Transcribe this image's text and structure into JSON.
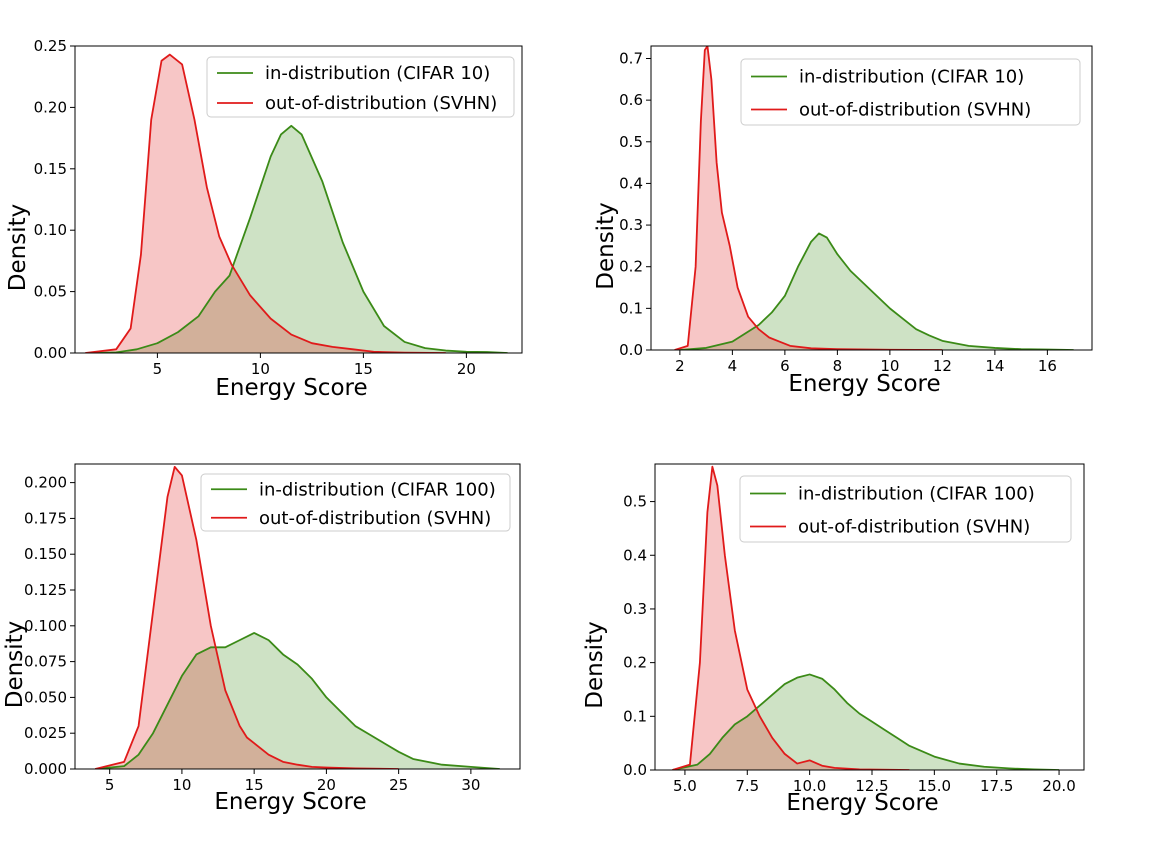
{
  "colors": {
    "in_line": "#3b8a17",
    "in_fill": "#3b8a17",
    "ood_line": "#e01a1a",
    "ood_fill": "#e01a1a"
  },
  "chart_data": [
    {
      "type": "area",
      "xlabel": "Energy Score",
      "ylabel": "Density",
      "xlim": [
        1.0,
        22.7
      ],
      "ylim": [
        0,
        0.25
      ],
      "xticks": [
        "5",
        "10",
        "15",
        "20"
      ],
      "xtick_values": [
        5,
        10,
        15,
        20
      ],
      "yticks": [
        "0.00",
        "0.05",
        "0.10",
        "0.15",
        "0.20",
        "0.25"
      ],
      "ytick_values": [
        0,
        0.05,
        0.1,
        0.15,
        0.2,
        0.25
      ],
      "legend": "top-right",
      "series": [
        {
          "name": "in-distribution (CIFAR 10)",
          "color": "#3b8a17",
          "x": [
            2.0,
            3.0,
            4.0,
            5.0,
            6.0,
            7.0,
            7.8,
            8.5,
            9.5,
            10.5,
            11.0,
            11.5,
            12.0,
            13.0,
            14.0,
            15.0,
            16.0,
            17.0,
            18.0,
            19.0,
            20.0,
            21.0,
            22.0
          ],
          "y": [
            0.0,
            0.0005,
            0.003,
            0.008,
            0.017,
            0.03,
            0.05,
            0.063,
            0.11,
            0.16,
            0.178,
            0.185,
            0.178,
            0.14,
            0.09,
            0.05,
            0.022,
            0.009,
            0.004,
            0.002,
            0.001,
            0.0008,
            0.0
          ]
        },
        {
          "name": "out-of-distribution (SVHN)",
          "color": "#e01a1a",
          "x": [
            1.5,
            3.0,
            3.7,
            4.2,
            4.7,
            5.2,
            5.6,
            6.2,
            6.8,
            7.4,
            8.0,
            8.6,
            9.5,
            10.5,
            11.5,
            12.5,
            13.5,
            14.5,
            15.5,
            17.0,
            19.0
          ],
          "y": [
            0.0,
            0.003,
            0.02,
            0.08,
            0.19,
            0.238,
            0.243,
            0.235,
            0.19,
            0.135,
            0.095,
            0.072,
            0.047,
            0.028,
            0.015,
            0.008,
            0.005,
            0.003,
            0.001,
            0.0003,
            0.0
          ]
        }
      ]
    },
    {
      "type": "area",
      "xlabel": "Energy Score",
      "ylabel": "Density",
      "xlim": [
        0.9,
        17.7
      ],
      "ylim": [
        0,
        0.73
      ],
      "xticks": [
        "2",
        "4",
        "6",
        "8",
        "10",
        "12",
        "14",
        "16"
      ],
      "xtick_values": [
        2,
        4,
        6,
        8,
        10,
        12,
        14,
        16
      ],
      "yticks": [
        "0.0",
        "0.1",
        "0.2",
        "0.3",
        "0.4",
        "0.5",
        "0.6",
        "0.7"
      ],
      "ytick_values": [
        0,
        0.1,
        0.2,
        0.3,
        0.4,
        0.5,
        0.6,
        0.7
      ],
      "legend": "top-right",
      "series": [
        {
          "name": "in-distribution (CIFAR 10)",
          "color": "#3b8a17",
          "x": [
            2.0,
            3.0,
            4.0,
            5.0,
            5.5,
            6.0,
            6.5,
            7.0,
            7.3,
            7.6,
            8.0,
            8.5,
            9.0,
            9.5,
            10.0,
            10.5,
            11.0,
            11.5,
            12.0,
            13.0,
            14.0,
            15.0,
            16.0,
            17.0
          ],
          "y": [
            0.0,
            0.005,
            0.02,
            0.06,
            0.09,
            0.13,
            0.2,
            0.26,
            0.28,
            0.27,
            0.23,
            0.19,
            0.16,
            0.13,
            0.1,
            0.075,
            0.05,
            0.035,
            0.022,
            0.01,
            0.005,
            0.002,
            0.001,
            0.0
          ]
        },
        {
          "name": "out-of-distribution (SVHN)",
          "color": "#e01a1a",
          "x": [
            1.8,
            2.3,
            2.6,
            2.8,
            2.95,
            3.05,
            3.2,
            3.4,
            3.6,
            3.9,
            4.2,
            4.6,
            5.0,
            5.4,
            5.8,
            6.2,
            7.0,
            8.0,
            10.0,
            12.0
          ],
          "y": [
            0.0,
            0.01,
            0.2,
            0.55,
            0.72,
            0.73,
            0.65,
            0.45,
            0.33,
            0.25,
            0.15,
            0.08,
            0.05,
            0.03,
            0.02,
            0.01,
            0.004,
            0.002,
            0.0005,
            0.0
          ]
        }
      ]
    },
    {
      "type": "area",
      "xlabel": "Energy Score",
      "ylabel": "Density",
      "xlim": [
        2.6,
        33.4
      ],
      "ylim": [
        0,
        0.213
      ],
      "xticks": [
        "5",
        "10",
        "15",
        "20",
        "25",
        "30"
      ],
      "xtick_values": [
        5,
        10,
        15,
        20,
        25,
        30
      ],
      "yticks": [
        "0.000",
        "0.025",
        "0.050",
        "0.075",
        "0.100",
        "0.125",
        "0.150",
        "0.175",
        "0.200"
      ],
      "ytick_values": [
        0,
        0.025,
        0.05,
        0.075,
        0.1,
        0.125,
        0.15,
        0.175,
        0.2
      ],
      "legend": "top-right",
      "series": [
        {
          "name": "in-distribution (CIFAR 100)",
          "color": "#3b8a17",
          "x": [
            4.0,
            6.0,
            7.0,
            8.0,
            9.0,
            10.0,
            11.0,
            12.0,
            13.0,
            14.0,
            15.0,
            16.0,
            17.0,
            18.0,
            19.0,
            20.0,
            21.0,
            22.0,
            23.0,
            24.0,
            25.0,
            26.0,
            28.0,
            30.0,
            32.0
          ],
          "y": [
            0.0,
            0.002,
            0.01,
            0.025,
            0.045,
            0.065,
            0.08,
            0.085,
            0.085,
            0.09,
            0.095,
            0.09,
            0.08,
            0.073,
            0.063,
            0.05,
            0.04,
            0.03,
            0.024,
            0.018,
            0.012,
            0.007,
            0.003,
            0.0015,
            0.0
          ]
        },
        {
          "name": "out-of-distribution (SVHN)",
          "color": "#e01a1a",
          "x": [
            4.0,
            6.0,
            7.0,
            8.0,
            9.0,
            9.5,
            10.0,
            11.0,
            12.0,
            13.0,
            14.0,
            14.5,
            15.0,
            16.0,
            17.0,
            18.0,
            19.0,
            20.0,
            22.0,
            25.0
          ],
          "y": [
            0.0,
            0.005,
            0.03,
            0.11,
            0.19,
            0.211,
            0.205,
            0.16,
            0.1,
            0.055,
            0.03,
            0.022,
            0.018,
            0.01,
            0.005,
            0.003,
            0.0015,
            0.001,
            0.0004,
            0.0
          ]
        }
      ]
    },
    {
      "type": "area",
      "xlabel": "Energy Score",
      "ylabel": "Density",
      "xlim": [
        3.8,
        21.0
      ],
      "ylim": [
        0,
        0.57
      ],
      "xticks": [
        "5.0",
        "7.5",
        "10.0",
        "12.5",
        "15.0",
        "17.5",
        "20.0"
      ],
      "xtick_values": [
        5,
        7.5,
        10,
        12.5,
        15,
        17.5,
        20
      ],
      "yticks": [
        "0.0",
        "0.1",
        "0.2",
        "0.3",
        "0.4",
        "0.5"
      ],
      "ytick_values": [
        0,
        0.1,
        0.2,
        0.3,
        0.4,
        0.5
      ],
      "legend": "top-right",
      "series": [
        {
          "name": "in-distribution (CIFAR 100)",
          "color": "#3b8a17",
          "x": [
            4.5,
            5.5,
            6.0,
            6.5,
            7.0,
            7.5,
            8.0,
            8.5,
            9.0,
            9.5,
            10.0,
            10.5,
            11.0,
            11.5,
            12.0,
            12.5,
            13.0,
            13.5,
            14.0,
            15.0,
            16.0,
            17.0,
            18.0,
            19.0,
            20.0
          ],
          "y": [
            0.0,
            0.01,
            0.03,
            0.06,
            0.085,
            0.1,
            0.12,
            0.14,
            0.16,
            0.172,
            0.178,
            0.17,
            0.15,
            0.125,
            0.105,
            0.09,
            0.075,
            0.06,
            0.045,
            0.025,
            0.012,
            0.006,
            0.003,
            0.001,
            0.0
          ]
        },
        {
          "name": "out-of-distribution (SVHN)",
          "color": "#e01a1a",
          "x": [
            4.5,
            5.2,
            5.6,
            5.9,
            6.1,
            6.3,
            6.6,
            7.0,
            7.5,
            8.0,
            8.5,
            9.0,
            9.5,
            10.0,
            10.5,
            11.0,
            12.0,
            14.0
          ],
          "y": [
            0.0,
            0.01,
            0.2,
            0.48,
            0.565,
            0.53,
            0.4,
            0.26,
            0.15,
            0.1,
            0.06,
            0.03,
            0.012,
            0.018,
            0.008,
            0.004,
            0.001,
            0.0
          ]
        }
      ]
    }
  ]
}
